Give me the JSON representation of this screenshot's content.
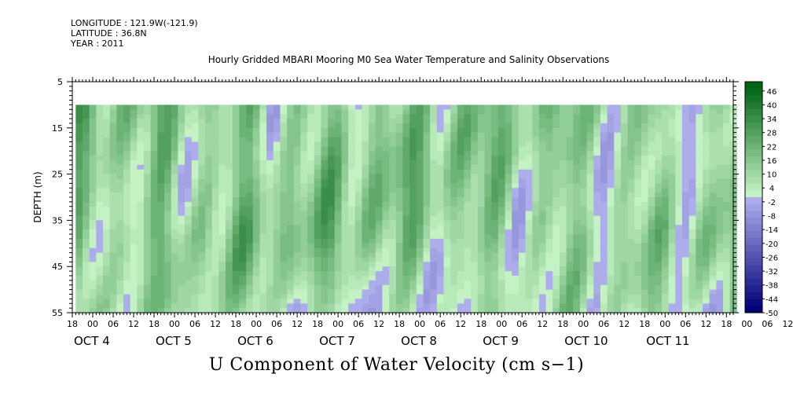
{
  "header": {
    "longitude": "LONGITUDE : 121.9W(-121.9)",
    "latitude": "LATITUDE : 36.8N",
    "year": "YEAR : 2011"
  },
  "title": "Hourly Gridded MBARI Mooring M0 Sea Water Temperature and Salinity Observations",
  "bottom_title": "U Component of Water Velocity (cm s−1)",
  "chart_data": {
    "type": "heatmap",
    "ylabel": "DEPTH (m)",
    "y_range": [
      5,
      55
    ],
    "y_reversed": true,
    "y_ticks": [
      "5",
      "15",
      "25",
      "35",
      "45",
      "55"
    ],
    "data_depth_range": [
      10,
      55
    ],
    "data_time_start_hour": 1,
    "time_start": "OCT 3 18:00",
    "time_end": "OCT 11 20:00",
    "hour_tick_labels": [
      "18",
      "00",
      "06",
      "12",
      "18",
      "00",
      "06",
      "12",
      "18",
      "00",
      "06",
      "12",
      "18",
      "00",
      "06",
      "12",
      "18",
      "00",
      "06",
      "12",
      "18",
      "00",
      "06",
      "12",
      "18",
      "00",
      "06",
      "12",
      "18",
      "00",
      "06",
      "12",
      "18",
      "00",
      "06",
      "12",
      "18"
    ],
    "day_labels": [
      {
        "label": "OCT  4",
        "day": 4
      },
      {
        "label": "OCT  5",
        "day": 5
      },
      {
        "label": "OCT  6",
        "day": 6
      },
      {
        "label": "OCT  7",
        "day": 7
      },
      {
        "label": "OCT  8",
        "day": 8
      },
      {
        "label": "OCT  9",
        "day": 9
      },
      {
        "label": "OCT 10",
        "day": 10
      },
      {
        "label": "OCT 11",
        "day": 11
      }
    ],
    "colorbar": {
      "min": -50,
      "max": 50,
      "step": 3,
      "labels": [
        "46",
        "40",
        "34",
        "28",
        "22",
        "16",
        "10",
        "4",
        "-2",
        "-8",
        "-14",
        "-20",
        "-26",
        "-32",
        "-38",
        "-44",
        "-50"
      ],
      "colors": {
        "negative_light": "#b4b4f0",
        "negative_dark": "#000078",
        "positive_light": "#c8f5c8",
        "positive_dark": "#006414"
      }
    }
  }
}
